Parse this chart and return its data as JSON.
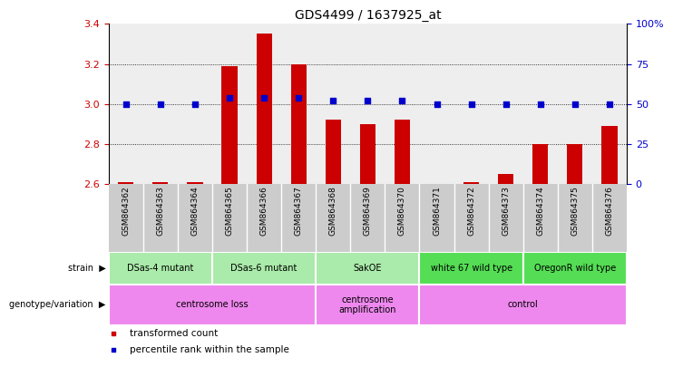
{
  "title": "GDS4499 / 1637925_at",
  "samples": [
    "GSM864362",
    "GSM864363",
    "GSM864364",
    "GSM864365",
    "GSM864366",
    "GSM864367",
    "GSM864368",
    "GSM864369",
    "GSM864370",
    "GSM864371",
    "GSM864372",
    "GSM864373",
    "GSM864374",
    "GSM864375",
    "GSM864376"
  ],
  "transformed_count": [
    2.61,
    2.61,
    2.61,
    3.19,
    3.35,
    3.2,
    2.92,
    2.9,
    2.92,
    2.6,
    2.61,
    2.65,
    2.8,
    2.8,
    2.89
  ],
  "percentile_rank": [
    50,
    50,
    50,
    54,
    54,
    54,
    52,
    52,
    52,
    50,
    50,
    50,
    50,
    50,
    50
  ],
  "ylim_left": [
    2.6,
    3.4
  ],
  "ylim_right": [
    0,
    100
  ],
  "yticks_left": [
    2.6,
    2.8,
    3.0,
    3.2,
    3.4
  ],
  "yticks_right": [
    0,
    25,
    50,
    75,
    100
  ],
  "ytick_right_labels": [
    "0",
    "25",
    "50",
    "75",
    "100%"
  ],
  "grid_values": [
    2.8,
    3.0,
    3.2
  ],
  "strain_groups": [
    {
      "label": "DSas-4 mutant",
      "start": 0,
      "end": 3,
      "color": "#aaeaaa"
    },
    {
      "label": "DSas-6 mutant",
      "start": 3,
      "end": 6,
      "color": "#aaeaaa"
    },
    {
      "label": "SakOE",
      "start": 6,
      "end": 9,
      "color": "#aaeaaa"
    },
    {
      "label": "white 67 wild type",
      "start": 9,
      "end": 12,
      "color": "#55dd55"
    },
    {
      "label": "OregonR wild type",
      "start": 12,
      "end": 15,
      "color": "#55dd55"
    }
  ],
  "genotype_groups": [
    {
      "label": "centrosome loss",
      "start": 0,
      "end": 6,
      "color": "#ee88ee"
    },
    {
      "label": "centrosome\namplification",
      "start": 6,
      "end": 9,
      "color": "#ee88ee"
    },
    {
      "label": "control",
      "start": 9,
      "end": 15,
      "color": "#ee88ee"
    }
  ],
  "bar_color": "#CC0000",
  "dot_color": "#0000CC",
  "plot_bg": "#eeeeee",
  "xlabel_bg": "#cccccc",
  "strain_bg": "#ffffff",
  "geno_bg": "#ffffff"
}
